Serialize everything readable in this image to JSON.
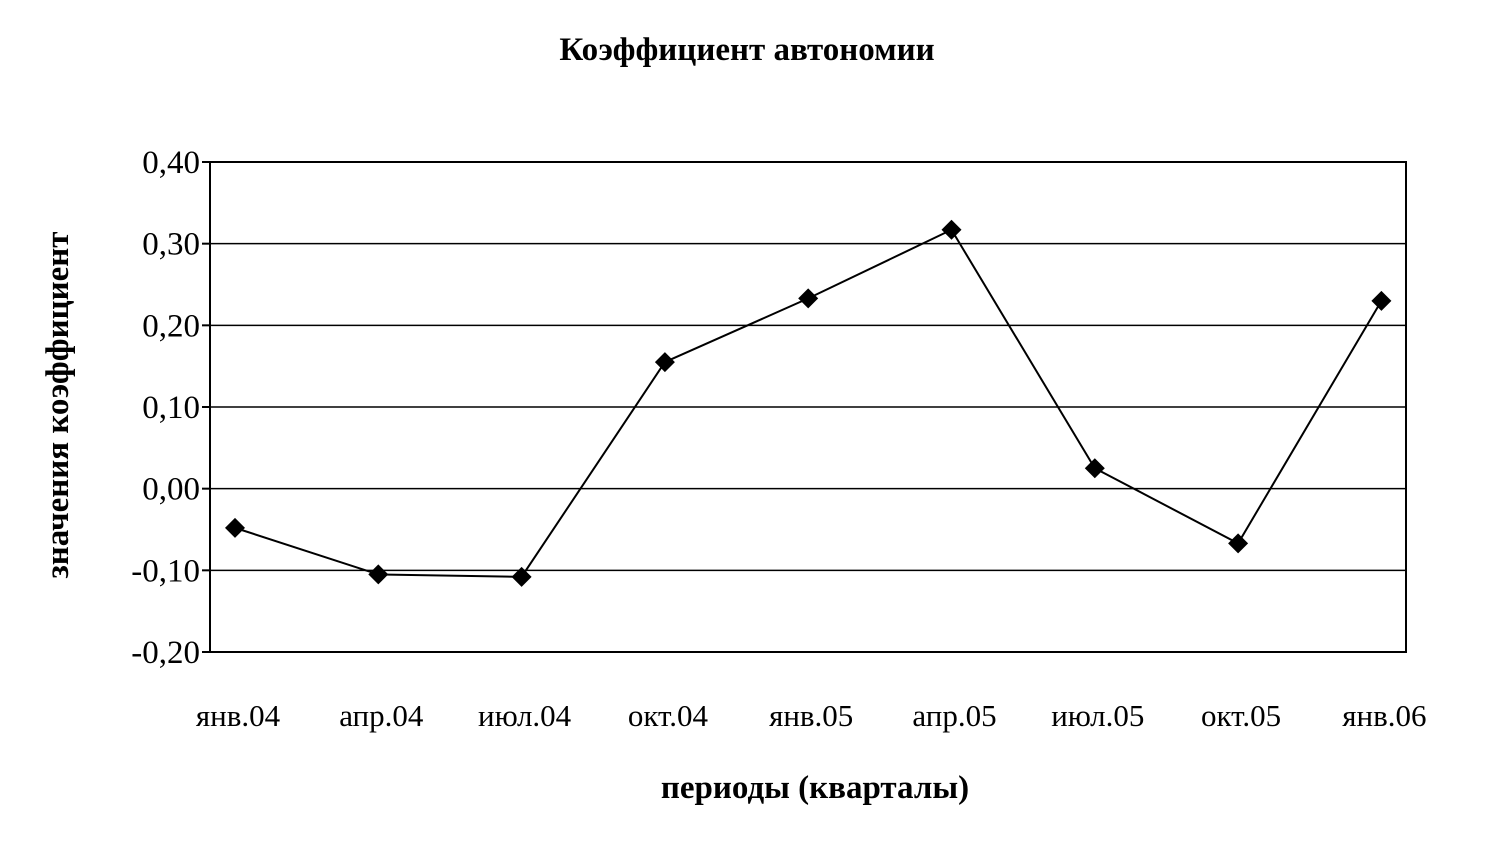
{
  "chart_data": {
    "type": "line",
    "title": "Коэффициент автономии",
    "xlabel": "периоды (кварталы)",
    "ylabel": "значения коэффициент",
    "categories": [
      "янв.04",
      "апр.04",
      "июл.04",
      "окт.04",
      "янв.05",
      "апр.05",
      "июл.05",
      "окт.05",
      "янв.06"
    ],
    "y_ticks": [
      "0,40",
      "0,30",
      "0,20",
      "0,10",
      "0,00",
      "-0,10",
      "-0,20"
    ],
    "y_tick_values": [
      0.4,
      0.3,
      0.2,
      0.1,
      0.0,
      -0.1,
      -0.2
    ],
    "ylim": [
      -0.2,
      0.4
    ],
    "grid": true,
    "legend": "none",
    "series": [
      {
        "marker": "diamond",
        "color": "#000000",
        "values": [
          -0.048,
          -0.105,
          -0.108,
          0.155,
          0.233,
          0.317,
          0.025,
          -0.067,
          0.23
        ]
      }
    ]
  }
}
